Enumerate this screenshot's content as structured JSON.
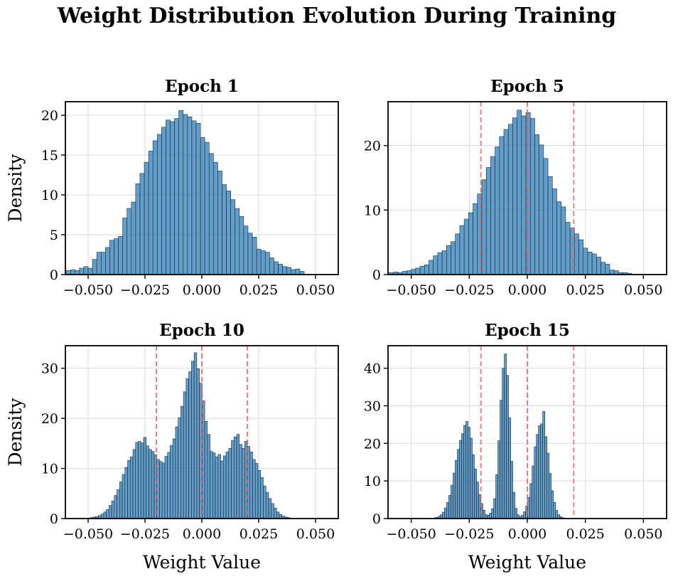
{
  "chart_data": {
    "title": "Weight Distribution Evolution During Training",
    "colors": {
      "bar": "#3b86bc",
      "edge": "#1d2b36",
      "reference_line": "#e8585b",
      "grid": "#dcdcdc"
    },
    "panels": [
      {
        "type": "bar",
        "title": "Epoch 1",
        "xlabel": "",
        "ylabel": "Density",
        "xlim": [
          -0.06,
          0.06
        ],
        "ylim": [
          0,
          21.7
        ],
        "xticks": [
          -0.05,
          -0.025,
          0.0,
          0.025,
          0.05
        ],
        "xtick_labels": [
          "−0.050",
          "−0.025",
          "0.000",
          "0.025",
          "0.050"
        ],
        "yticks": [
          0,
          5,
          10,
          15,
          20
        ],
        "ytick_labels": [
          "0",
          "5",
          "10",
          "15",
          "20"
        ],
        "reference_lines": [],
        "bin_start": -0.0595,
        "bin_width": 0.0019,
        "values": [
          0.5,
          0.6,
          0.5,
          0.8,
          1.0,
          0.8,
          1.9,
          2.8,
          2.8,
          3.4,
          4.3,
          4.5,
          4.8,
          7.1,
          8.3,
          9.1,
          11.4,
          12.7,
          14.1,
          15.5,
          16.8,
          17.6,
          18.5,
          19.4,
          19.2,
          19.6,
          20.6,
          20.1,
          19.8,
          19.3,
          19.0,
          17.2,
          16.6,
          15.2,
          14.1,
          13.0,
          11.3,
          10.5,
          9.4,
          8.3,
          7.3,
          6.1,
          5.2,
          4.7,
          3.2,
          3.0,
          2.8,
          2.1,
          1.6,
          1.3,
          1.0,
          0.9,
          0.6,
          0.7,
          0.4
        ]
      },
      {
        "type": "bar",
        "title": "Epoch 5",
        "xlabel": "",
        "ylabel": "",
        "xlim": [
          -0.06,
          0.06
        ],
        "ylim": [
          0,
          26.8
        ],
        "xticks": [
          -0.05,
          -0.025,
          0.0,
          0.025,
          0.05
        ],
        "xtick_labels": [
          "−0.050",
          "−0.025",
          "0.000",
          "0.025",
          "0.050"
        ],
        "yticks": [
          0,
          10,
          20
        ],
        "ytick_labels": [
          "0",
          "10",
          "20"
        ],
        "reference_lines": [
          -0.02,
          0.0,
          0.02
        ],
        "bin_start": -0.0595,
        "bin_width": 0.0019,
        "values": [
          0.3,
          0.4,
          0.3,
          0.5,
          0.6,
          0.8,
          1.0,
          1.3,
          1.5,
          2.2,
          2.9,
          3.4,
          3.7,
          4.5,
          5.1,
          6.3,
          7.6,
          8.6,
          9.6,
          11.0,
          12.5,
          14.7,
          16.6,
          18.3,
          19.8,
          21.4,
          22.5,
          23.3,
          24.3,
          25.5,
          24.6,
          25.1,
          24.2,
          21.7,
          20.1,
          18.0,
          15.2,
          13.3,
          11.3,
          10.5,
          8.1,
          7.2,
          6.3,
          5.4,
          4.1,
          3.5,
          3.2,
          2.7,
          1.9,
          1.6,
          0.7,
          0.6,
          0.3,
          0.3,
          0.2
        ]
      },
      {
        "type": "bar",
        "title": "Epoch 10",
        "xlabel": "Weight Value",
        "ylabel": "Density",
        "xlim": [
          -0.06,
          0.06
        ],
        "ylim": [
          0,
          34.5
        ],
        "xticks": [
          -0.05,
          -0.025,
          0.0,
          0.025,
          0.05
        ],
        "xtick_labels": [
          "−0.050",
          "−0.025",
          "0.000",
          "0.025",
          "0.050"
        ],
        "yticks": [
          0,
          10,
          20,
          30
        ],
        "ytick_labels": [
          "0",
          "10",
          "20",
          "30"
        ],
        "reference_lines": [
          -0.02,
          0.0,
          0.02
        ],
        "bin_start": -0.0502,
        "bin_width": 0.00117,
        "values": [
          0.1,
          0.2,
          0.3,
          0.4,
          0.6,
          0.9,
          1.3,
          1.8,
          2.6,
          3.5,
          4.6,
          5.8,
          7.3,
          8.8,
          10.2,
          11.6,
          12.3,
          13.8,
          15.2,
          15.4,
          15.1,
          16.2,
          14.5,
          13.8,
          13.4,
          12.7,
          11.8,
          11.4,
          11.1,
          12.4,
          13.2,
          14.6,
          15.9,
          18.3,
          20.1,
          22.4,
          25.3,
          27.9,
          29.3,
          31.4,
          33.1,
          29.9,
          27.0,
          23.5,
          19.4,
          16.8,
          13.4,
          13.1,
          12.3,
          12.8,
          11.5,
          12.5,
          13.3,
          14.0,
          15.6,
          16.3,
          16.8,
          14.8,
          14.0,
          15.4,
          14.4,
          13.3,
          11.8,
          11.0,
          9.6,
          8.2,
          6.5,
          5.2,
          4.0,
          3.0,
          2.1,
          1.3,
          0.8,
          0.5,
          0.3,
          0.2
        ]
      },
      {
        "type": "bar",
        "title": "Epoch 15",
        "xlabel": "Weight Value",
        "ylabel": "",
        "xlim": [
          -0.06,
          0.06
        ],
        "ylim": [
          0,
          46
        ],
        "xticks": [
          -0.05,
          -0.025,
          0.0,
          0.025,
          0.05
        ],
        "xtick_labels": [
          "−0.050",
          "−0.025",
          "0.000",
          "0.025",
          "0.050"
        ],
        "yticks": [
          0,
          10,
          20,
          30,
          40
        ],
        "ytick_labels": [
          "0",
          "10",
          "20",
          "30",
          "40"
        ],
        "reference_lines": [
          -0.02,
          0.0,
          0.02
        ],
        "bin_start": -0.0412,
        "bin_width": 0.00092,
        "values": [
          0.1,
          0.2,
          0.3,
          0.6,
          1.0,
          1.7,
          2.8,
          4.3,
          6.2,
          8.9,
          12.1,
          15.5,
          18.4,
          20.8,
          22.6,
          24.8,
          25.9,
          24.3,
          21.4,
          17.0,
          13.2,
          9.7,
          6.4,
          4.0,
          2.2,
          1.0,
          0.9,
          1.4,
          2.6,
          5.3,
          11.7,
          20.7,
          31.5,
          40.0,
          43.8,
          38.1,
          26.8,
          15.2,
          7.0,
          2.7,
          1.0,
          0.5,
          0.9,
          1.8,
          3.3,
          5.6,
          9.3,
          14.0,
          19.1,
          22.4,
          24.7,
          25.2,
          28.5,
          21.8,
          17.4,
          12.0,
          7.4,
          4.3,
          2.2,
          1.0,
          0.5,
          0.2
        ]
      }
    ]
  }
}
